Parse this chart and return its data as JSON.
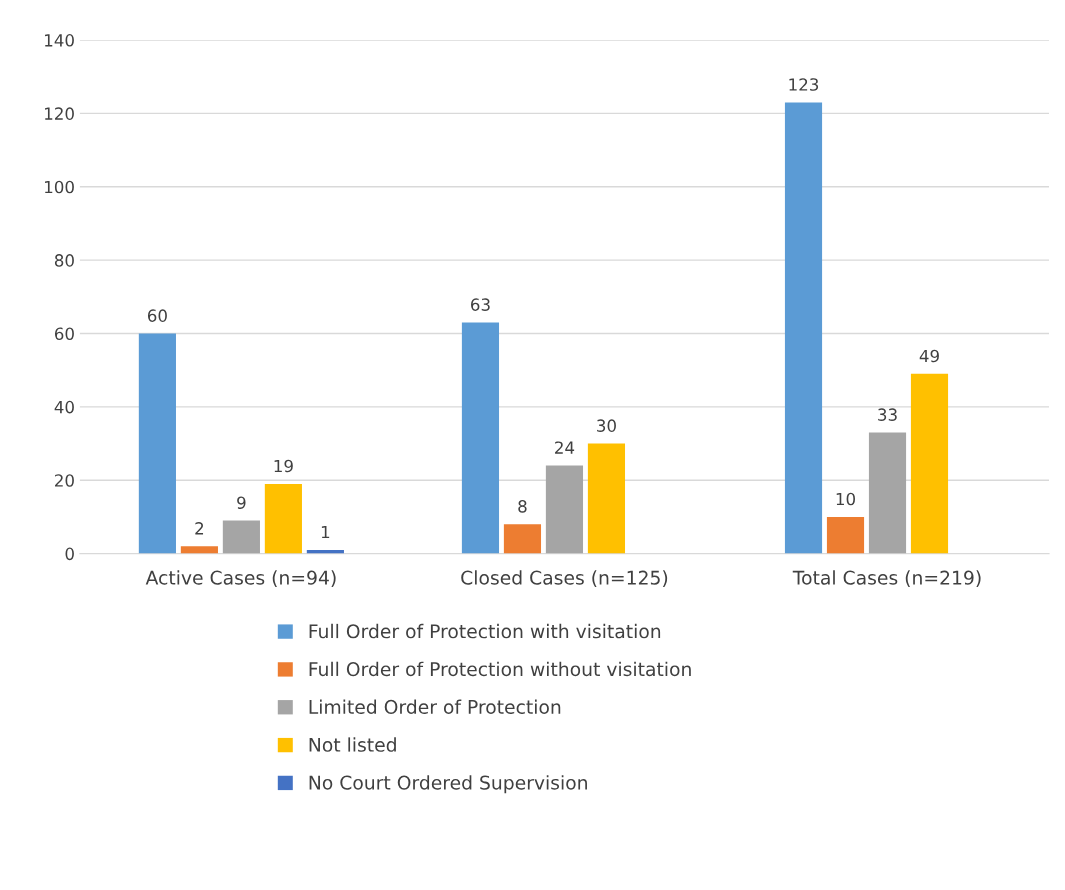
{
  "chart_data": {
    "type": "bar",
    "categories": [
      "Active Cases (n=94)",
      "Closed Cases (n=125)",
      "Total Cases (n=219)"
    ],
    "series": [
      {
        "name": "Full Order of Protection with visitation",
        "color": "#5b9bd5",
        "values": [
          60,
          63,
          123
        ]
      },
      {
        "name": "Full Order of Protection without visitation",
        "color": "#ed7d31",
        "values": [
          2,
          8,
          10
        ]
      },
      {
        "name": "Limited Order of Protection",
        "color": "#a5a5a5",
        "values": [
          9,
          24,
          33
        ]
      },
      {
        "name": "Not listed",
        "color": "#ffc000",
        "values": [
          19,
          30,
          49
        ]
      },
      {
        "name": "No Court Ordered Supervision",
        "color": "#4472c4",
        "values": [
          1,
          null,
          null
        ]
      }
    ],
    "ylim": [
      0,
      140
    ],
    "yticks": [
      0,
      20,
      40,
      60,
      80,
      100,
      120,
      140
    ],
    "grid": "y",
    "legend": "bottom",
    "data_labels": true
  }
}
